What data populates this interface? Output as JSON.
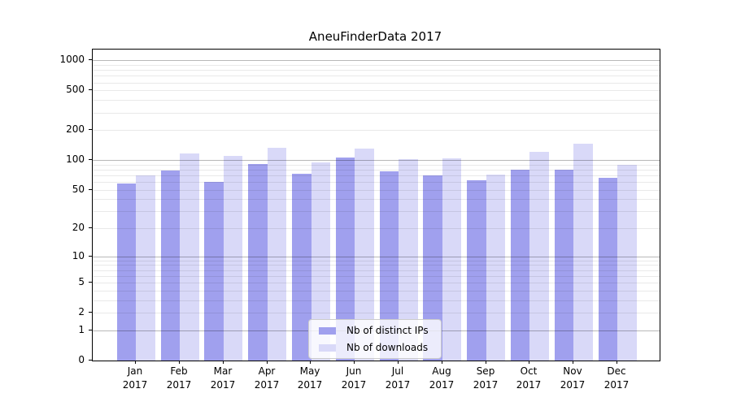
{
  "figure": {
    "title": "AneuFinderData 2017"
  },
  "chart_data": {
    "type": "bar",
    "title": "AneuFinderData 2017",
    "xlabel": "",
    "ylabel": "",
    "categories": [
      "Jan",
      "Feb",
      "Mar",
      "Apr",
      "May",
      "Jun",
      "Jul",
      "Aug",
      "Sep",
      "Oct",
      "Nov",
      "Dec"
    ],
    "year_label": "2017",
    "series": [
      {
        "name": "Nb of distinct IPs",
        "color": "#a0a0ee",
        "values": [
          58,
          78,
          60,
          92,
          73,
          106,
          77,
          70,
          62,
          80,
          80,
          66
        ]
      },
      {
        "name": "Nb of downloads",
        "color": "#d9d9f8",
        "values": [
          70,
          116,
          110,
          133,
          95,
          130,
          102,
          104,
          72,
          120,
          146,
          90
        ]
      }
    ],
    "yticks": [
      0,
      1,
      2,
      5,
      10,
      20,
      50,
      100,
      200,
      500,
      1000
    ],
    "scale": "log1p",
    "ylim": [
      0,
      1300
    ],
    "grid": {
      "major_at": [
        1,
        10,
        100,
        1000
      ],
      "minor_multiples": [
        2,
        3,
        4,
        5,
        6,
        7,
        8,
        9
      ]
    },
    "legend_position": "lower-center",
    "legend_entries": [
      "Nb of distinct IPs",
      "Nb of downloads"
    ]
  }
}
